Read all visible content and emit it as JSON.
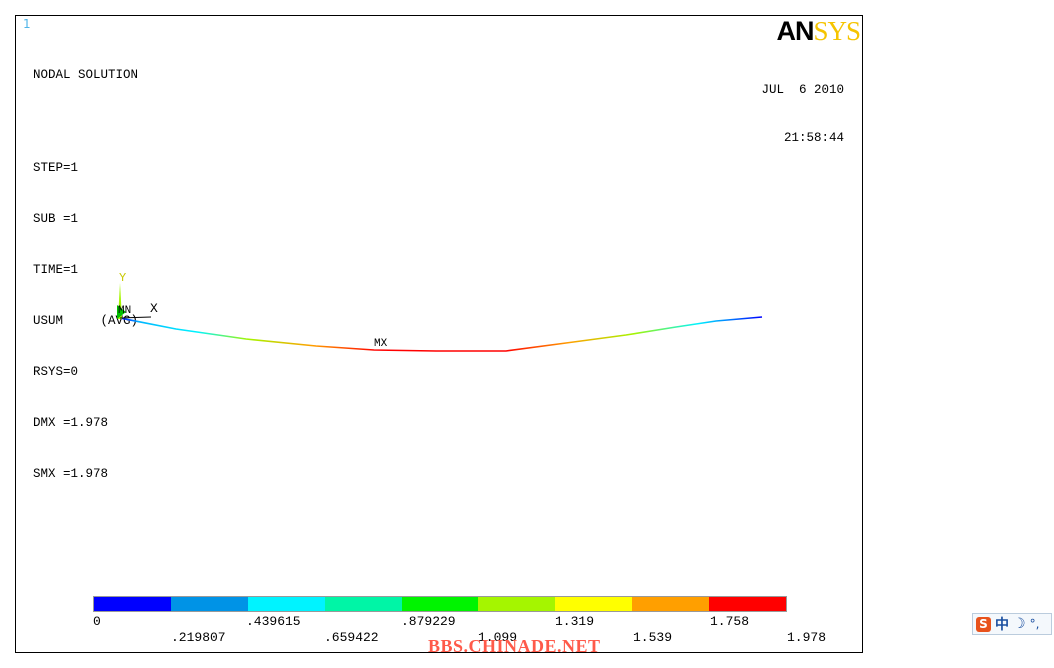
{
  "window": {
    "number": "1"
  },
  "logo": {
    "an": "AN",
    "sys": "SYS"
  },
  "header": {
    "title": "NODAL SOLUTION",
    "lines": [
      "STEP=1",
      "SUB =1",
      "TIME=1",
      "USUM     (AVG)",
      "RSYS=0",
      "DMX =1.978",
      "SMX =1.978"
    ]
  },
  "datetime": {
    "date": "JUL  6 2010",
    "time": "21:58:44"
  },
  "triad": {
    "y_label": "Y",
    "x_label": "X",
    "origin_label": "MN"
  },
  "plot": {
    "max_label": "MX"
  },
  "legend": {
    "colors": [
      "#0000ff",
      "#0093e6",
      "#00f3ff",
      "#00f5a6",
      "#00f400",
      "#a5f500",
      "#ffff00",
      "#ff9f00",
      "#ff0000"
    ],
    "top_labels": [
      "0",
      ".439615",
      ".879229",
      "1.319",
      "1.758"
    ],
    "bottom_labels": [
      ".219807",
      ".659422",
      "1.099",
      "1.539",
      "1.978"
    ]
  },
  "watermark": {
    "text": "BBS.CHINADE.NET"
  },
  "taskbar": {
    "ime_s": "S",
    "ime_lang": "中",
    "ime_moon": "☽",
    "ime_punct": "°,"
  }
}
